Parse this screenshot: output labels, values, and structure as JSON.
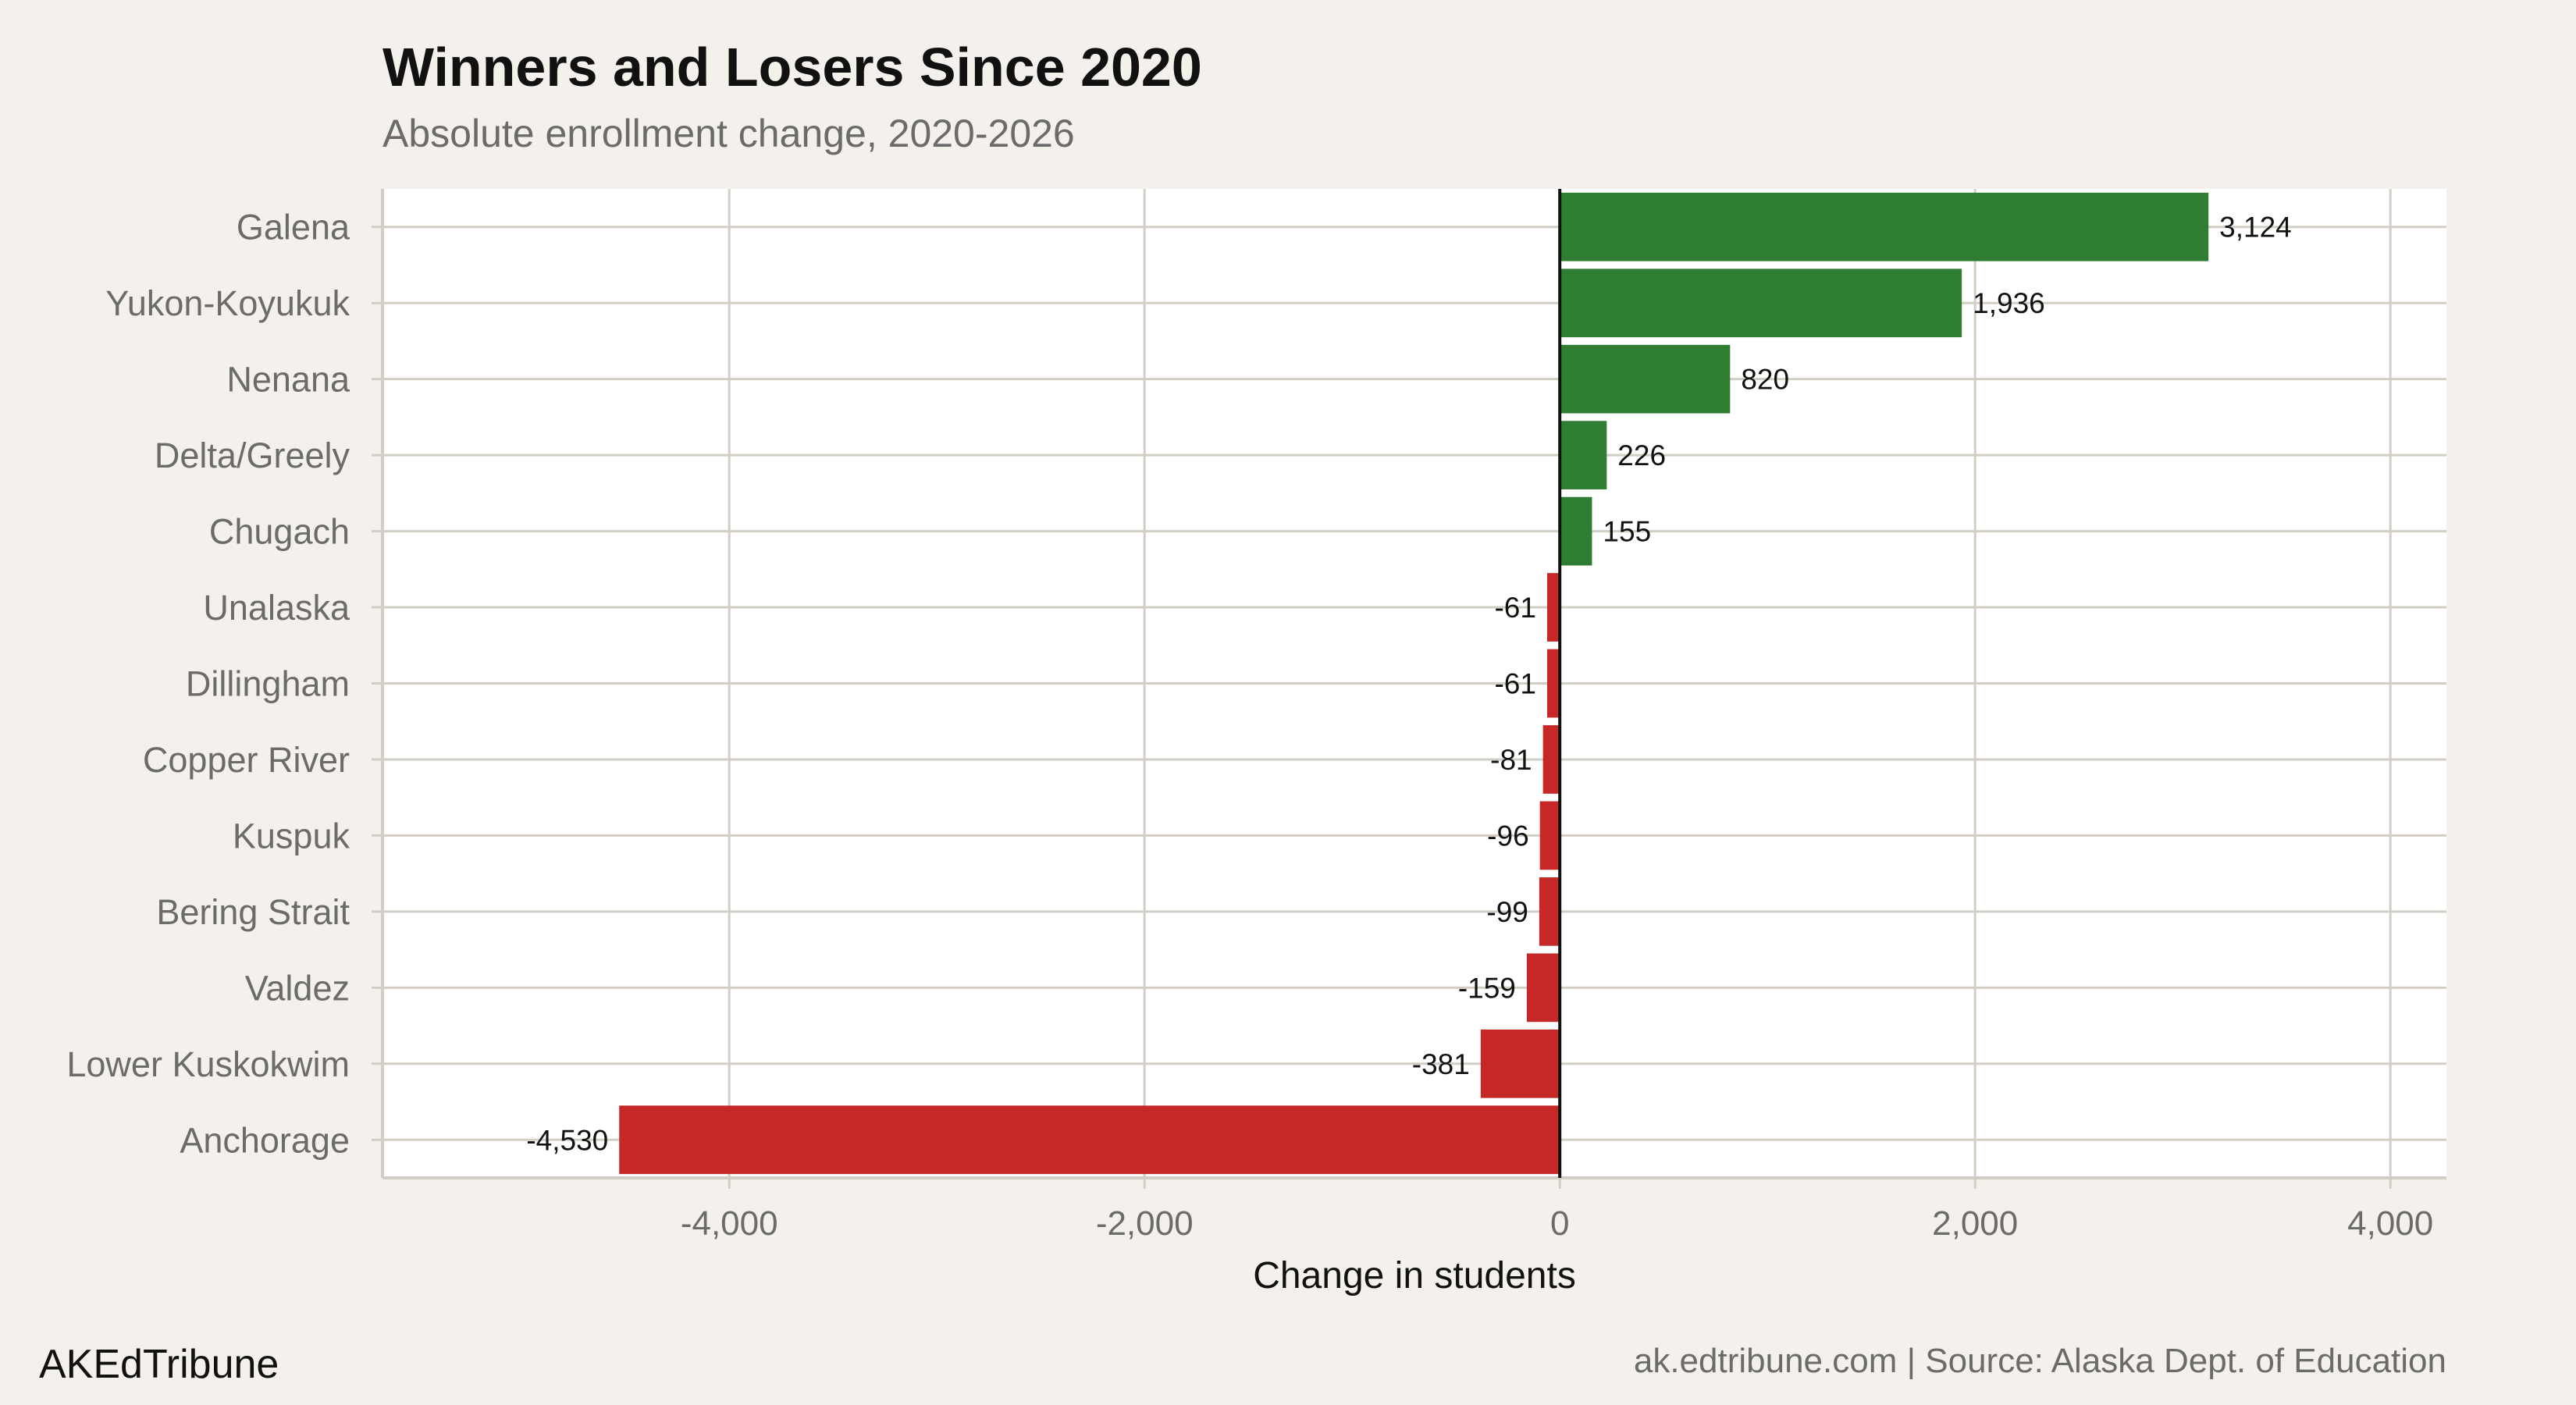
{
  "chart_data": {
    "type": "bar",
    "orientation": "horizontal",
    "title": "Winners and Losers Since 2020",
    "subtitle": "Absolute enrollment change, 2020-2026",
    "xlabel": "Change in students",
    "ylabel": "",
    "categories": [
      "Galena",
      "Yukon-Koyukuk",
      "Nenana",
      "Delta/Greely",
      "Chugach",
      "Unalaska",
      "Dillingham",
      "Copper River",
      "Kuspuk",
      "Bering Strait",
      "Valdez",
      "Lower Kuskokwim",
      "Anchorage"
    ],
    "values": [
      3124,
      1936,
      820,
      226,
      155,
      -61,
      -61,
      -81,
      -96,
      -99,
      -159,
      -381,
      -4530
    ],
    "value_labels": [
      "3,124",
      "1,936",
      "820",
      "226",
      "155",
      "-61",
      "-61",
      "-81",
      "-96",
      "-99",
      "-159",
      "-381",
      "-4,530"
    ],
    "xlim": [
      -5670,
      4270
    ],
    "x_ticks": [
      -4000,
      -2000,
      0,
      2000,
      4000
    ],
    "x_tick_labels": [
      "-4,000",
      "-2,000",
      "0",
      "2,000",
      "4,000"
    ],
    "grid": true,
    "colors": {
      "positive": "#2e7d32",
      "negative": "#c62828",
      "background": "#f4f1ec",
      "panel": "#ffffff",
      "grid": "#d2cdc5"
    }
  },
  "footer": {
    "brand": "AKEdTribune",
    "source": "ak.edtribune.com | Source: Alaska Dept. of Education"
  }
}
